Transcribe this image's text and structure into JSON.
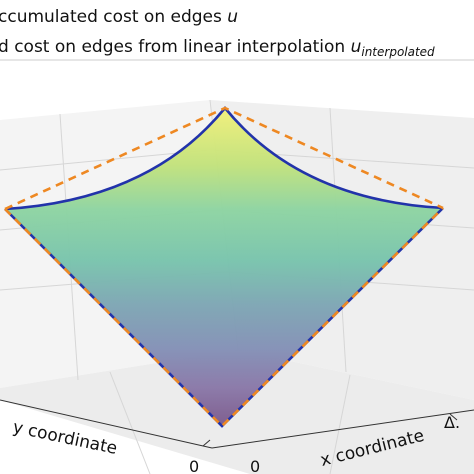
{
  "chart_data": {
    "type": "surface-3d",
    "xlabel": "x coordinate",
    "ylabel": "y coordinate",
    "x_ticks": [
      "0",
      "Δ."
    ],
    "y_ticks": [
      "0"
    ],
    "grid": true,
    "legend_position": "top",
    "series": [
      {
        "name": "ccumulated cost on edges ",
        "name_symbol": "u",
        "color": "#2233aa",
        "style": "solid"
      },
      {
        "name": "d cost on edges from linear interpolation ",
        "name_symbol": "u",
        "name_subscript": "interpolated",
        "color": "#ee8822",
        "style": "dashed"
      }
    ],
    "colormap": "viridis"
  }
}
